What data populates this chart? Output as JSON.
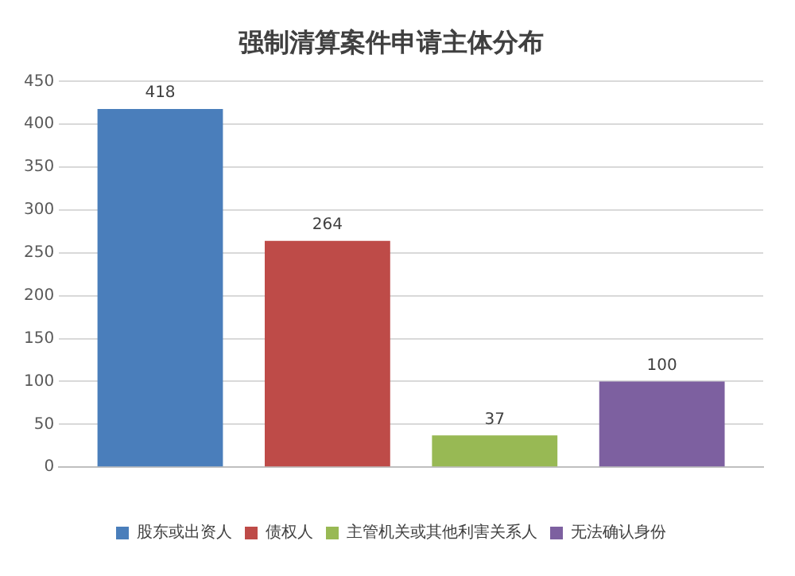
{
  "chart_data": {
    "type": "bar",
    "title": "强制清算案件申请主体分布",
    "categories": [
      null
    ],
    "series": [
      {
        "name": "股东或出资人",
        "color": "#4a7ebb",
        "values": [
          418
        ]
      },
      {
        "name": "债权人",
        "color": "#be4b48",
        "values": [
          264
        ]
      },
      {
        "name": "主管机关或其他利害关系人",
        "color": "#98b954",
        "values": [
          37
        ]
      },
      {
        "name": "无法确认身份",
        "color": "#7d60a0",
        "values": [
          100
        ]
      }
    ],
    "ylim": [
      0,
      450
    ],
    "yticks": [
      0,
      50,
      100,
      150,
      200,
      250,
      300,
      350,
      400,
      450
    ],
    "grid": "y",
    "legend": "bottom",
    "data_labels": true
  }
}
